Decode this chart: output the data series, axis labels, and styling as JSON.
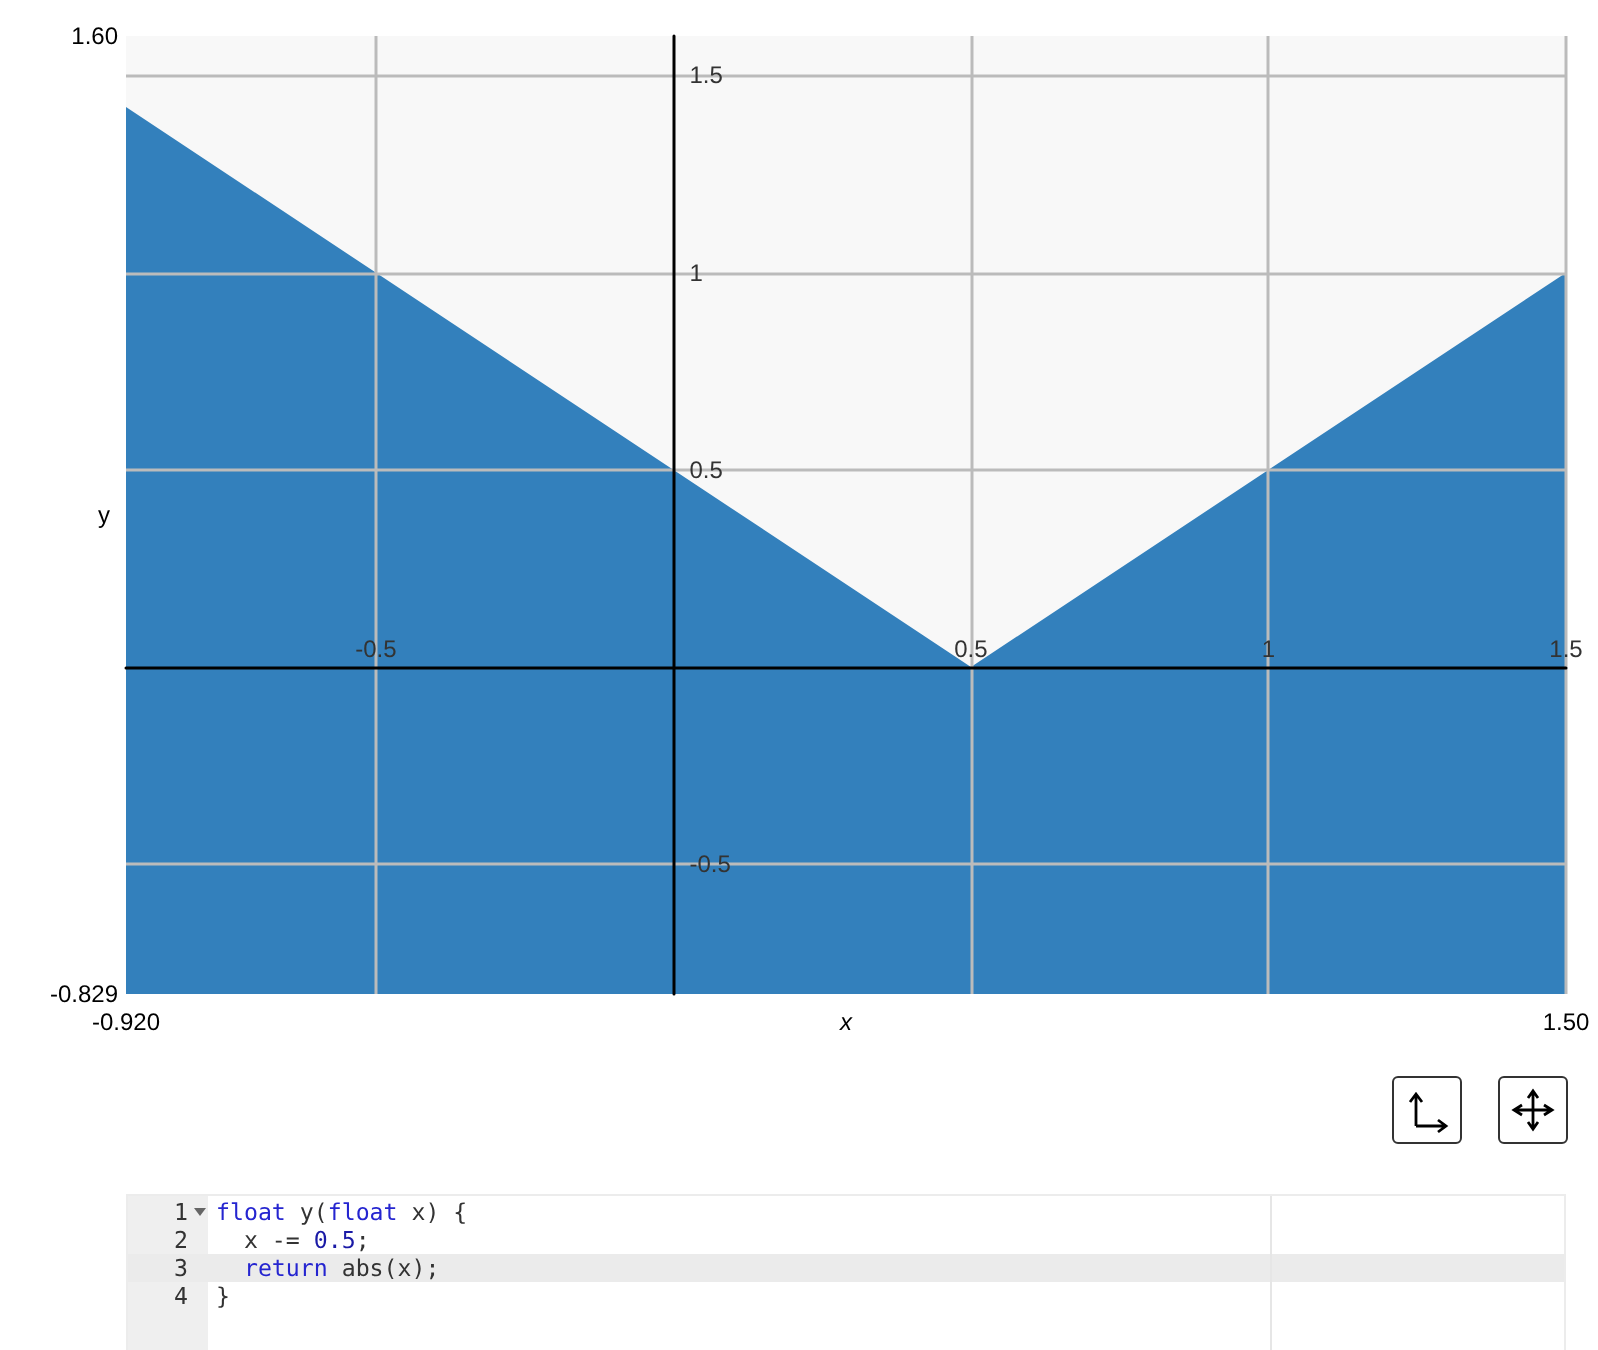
{
  "chart_data": {
    "type": "area",
    "x": [
      -0.92,
      0.5,
      1.5
    ],
    "values": [
      1.42,
      0,
      1
    ],
    "color": "#3380bc",
    "bands": [
      {
        "axis": "y",
        "from": -0.829,
        "to": 0,
        "color": "#3380bc"
      }
    ],
    "xlabel": "x",
    "ylabel": "y",
    "xlim": [
      -0.92,
      1.5
    ],
    "ylim": [
      -0.829,
      1.6
    ],
    "xticks": [
      {
        "value": -0.92,
        "label": "-0.920"
      },
      {
        "value": 1.5,
        "label": "1.50"
      }
    ],
    "yticks": [
      -0.829,
      {
        "value": 1.6,
        "label": "1.60"
      }
    ],
    "x2lim": [
      -0.92,
      1.5
    ],
    "x2ticks": [
      -0.5,
      0.5,
      1,
      1.5
    ],
    "y2lim": [
      -0.829,
      1.6
    ],
    "y2ticks": [
      -0.5,
      0.5,
      1,
      1.5
    ],
    "grid": true,
    "annotations": [
      "1",
      "float y(float x) {",
      "2",
      "  x -= 0.5;",
      "3",
      "  return abs(x);",
      "4",
      "}"
    ]
  }
}
